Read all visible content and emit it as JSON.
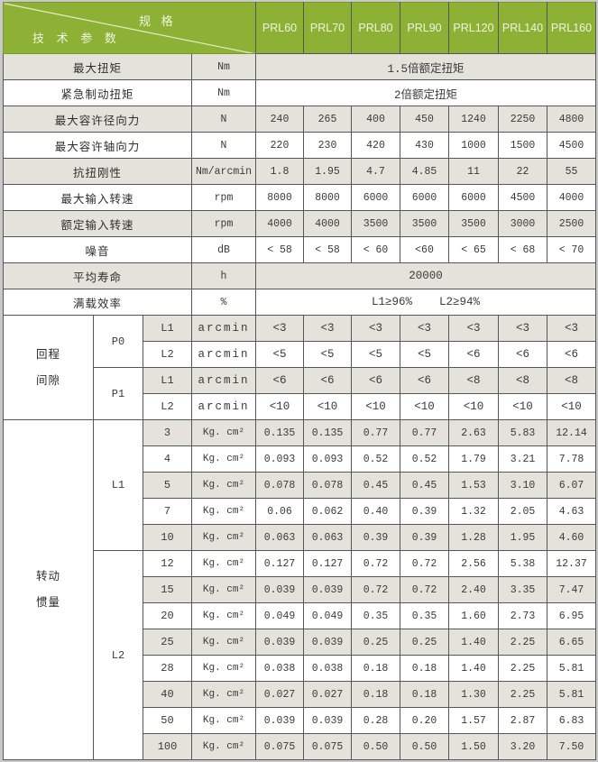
{
  "header": {
    "diag_top": "规 格",
    "diag_bottom": "技 术 参 数",
    "columns": [
      "PRL60",
      "PRL70",
      "PRL80",
      "PRL90",
      "PRL120",
      "PRL140",
      "PRL160"
    ]
  },
  "colors": {
    "header_green": "#8cb134",
    "row_gray": "#e4e2db",
    "row_white": "#ffffff",
    "border": "#55565a",
    "header_text": "#f1f4e3"
  },
  "simple_rows": [
    {
      "label": "最大扭矩",
      "unit": "Nm",
      "span": "1.5倍额定扭矩"
    },
    {
      "label": "紧急制动扭矩",
      "unit": "Nm",
      "span": "2倍额定扭矩"
    },
    {
      "label": "最大容许径向力",
      "unit": "N",
      "values": [
        "240",
        "265",
        "400",
        "450",
        "1240",
        "2250",
        "4800"
      ]
    },
    {
      "label": "最大容许轴向力",
      "unit": "N",
      "values": [
        "220",
        "230",
        "420",
        "430",
        "1000",
        "1500",
        "4500"
      ]
    },
    {
      "label": "抗扭刚性",
      "unit": "Nm/arcmin",
      "values": [
        "1.8",
        "1.95",
        "4.7",
        "4.85",
        "11",
        "22",
        "55"
      ]
    },
    {
      "label": "最大输入转速",
      "unit": "rpm",
      "values": [
        "8000",
        "8000",
        "6000",
        "6000",
        "6000",
        "4500",
        "4000"
      ]
    },
    {
      "label": "额定输入转速",
      "unit": "rpm",
      "values": [
        "4000",
        "4000",
        "3500",
        "3500",
        "3500",
        "3000",
        "2500"
      ]
    },
    {
      "label": "噪音",
      "unit": "dB",
      "values": [
        "< 58",
        "< 58",
        "< 60",
        "<60",
        "< 65",
        "< 68",
        "< 70"
      ]
    },
    {
      "label": "平均寿命",
      "unit": "h",
      "span": "20000"
    },
    {
      "label": "满载效率",
      "unit": "%",
      "span": "L1≥96%    L2≥94%"
    }
  ],
  "backlash": {
    "label": "回程\n间隙",
    "unit": "arcmin",
    "groups": [
      {
        "grade": "P0",
        "rows": [
          {
            "level": "L1",
            "values": [
              "<3",
              "<3",
              "<3",
              "<3",
              "<3",
              "<3",
              "<3"
            ]
          },
          {
            "level": "L2",
            "values": [
              "<5",
              "<5",
              "<5",
              "<5",
              "<6",
              "<6",
              "<6"
            ]
          }
        ]
      },
      {
        "grade": "P1",
        "rows": [
          {
            "level": "L1",
            "values": [
              "<6",
              "<6",
              "<6",
              "<6",
              "<8",
              "<8",
              "<8"
            ]
          },
          {
            "level": "L2",
            "values": [
              "<10",
              "<10",
              "<10",
              "<10",
              "<10",
              "<10",
              "<10"
            ]
          }
        ]
      }
    ]
  },
  "inertia": {
    "label": "转动\n惯量",
    "unit": "Kg. cm²",
    "groups": [
      {
        "stage": "L1",
        "rows": [
          {
            "ratio": "3",
            "values": [
              "0.135",
              "0.135",
              "0.77",
              "0.77",
              "2.63",
              "5.83",
              "12.14"
            ]
          },
          {
            "ratio": "4",
            "values": [
              "0.093",
              "0.093",
              "0.52",
              "0.52",
              "1.79",
              "3.21",
              "7.78"
            ]
          },
          {
            "ratio": "5",
            "values": [
              "0.078",
              "0.078",
              "0.45",
              "0.45",
              "1.53",
              "3.10",
              "6.07"
            ]
          },
          {
            "ratio": "7",
            "values": [
              "0.06",
              "0.062",
              "0.40",
              "0.39",
              "1.32",
              "2.05",
              "4.63"
            ]
          },
          {
            "ratio": "10",
            "values": [
              "0.063",
              "0.063",
              "0.39",
              "0.39",
              "1.28",
              "1.95",
              "4.60"
            ]
          }
        ]
      },
      {
        "stage": "L2",
        "rows": [
          {
            "ratio": "12",
            "values": [
              "0.127",
              "0.127",
              "0.72",
              "0.72",
              "2.56",
              "5.38",
              "12.37"
            ]
          },
          {
            "ratio": "15",
            "values": [
              "0.039",
              "0.039",
              "0.72",
              "0.72",
              "2.40",
              "3.35",
              "7.47"
            ]
          },
          {
            "ratio": "20",
            "values": [
              "0.049",
              "0.049",
              "0.35",
              "0.35",
              "1.60",
              "2.73",
              "6.95"
            ]
          },
          {
            "ratio": "25",
            "values": [
              "0.039",
              "0.039",
              "0.25",
              "0.25",
              "1.40",
              "2.25",
              "6.65"
            ]
          },
          {
            "ratio": "28",
            "values": [
              "0.038",
              "0.038",
              "0.18",
              "0.18",
              "1.40",
              "2.25",
              "5.81"
            ]
          },
          {
            "ratio": "40",
            "values": [
              "0.027",
              "0.027",
              "0.18",
              "0.18",
              "1.30",
              "2.25",
              "5.81"
            ]
          },
          {
            "ratio": "50",
            "values": [
              "0.039",
              "0.039",
              "0.28",
              "0.20",
              "1.57",
              "2.87",
              "6.83"
            ]
          },
          {
            "ratio": "100",
            "values": [
              "0.075",
              "0.075",
              "0.50",
              "0.50",
              "1.50",
              "3.20",
              "7.50"
            ]
          }
        ]
      }
    ]
  }
}
